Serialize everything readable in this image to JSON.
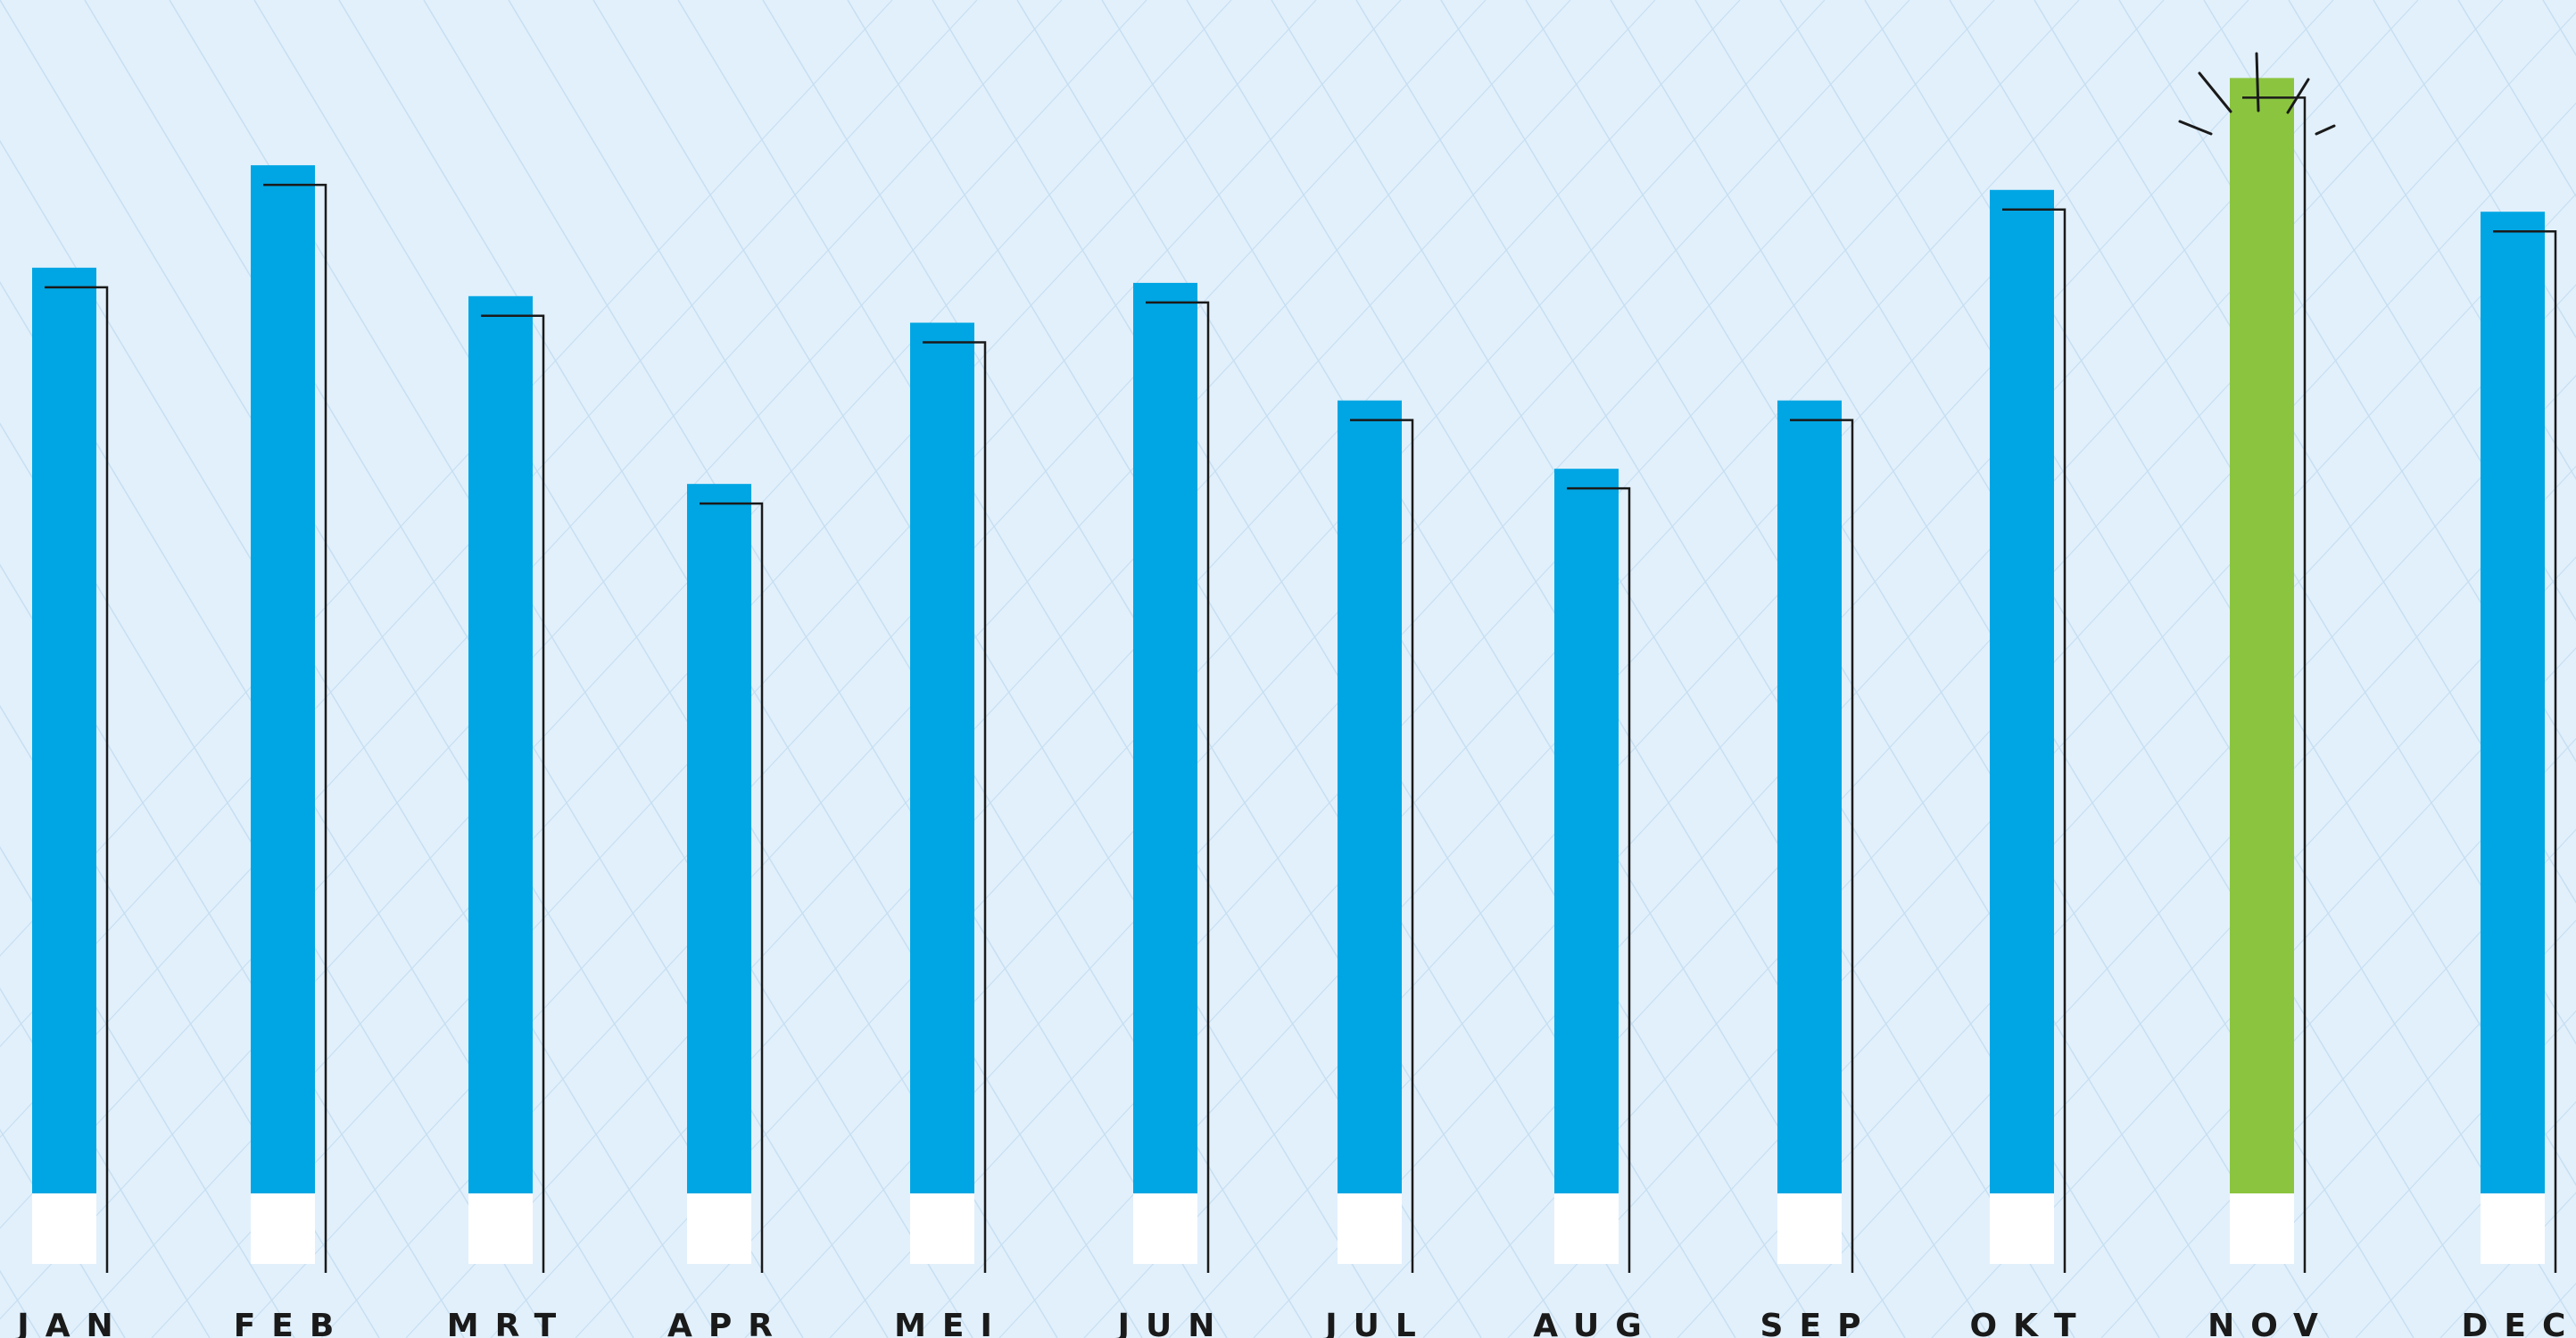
{
  "colors": {
    "background": "#e2f0fb",
    "grid": "#c7dff2",
    "bar": "#00a6e3",
    "highlight": "#8bc540",
    "base": "#ffffff",
    "line": "#1a1a1a"
  },
  "chart_data": {
    "type": "bar",
    "title": "",
    "xlabel": "",
    "ylabel": "",
    "grid": true,
    "highlight_category": "NOV",
    "categories": [
      "JAN",
      "FEB",
      "MRT",
      "APR",
      "MEI",
      "JUN",
      "JUL",
      "AUG",
      "SEP",
      "OKT",
      "NOV",
      "DEC"
    ],
    "values": [
      976,
      1084,
      946,
      748,
      918,
      960,
      836,
      764,
      836,
      1058,
      1176,
      1035
    ],
    "ylim": [
      0,
      1230
    ]
  }
}
